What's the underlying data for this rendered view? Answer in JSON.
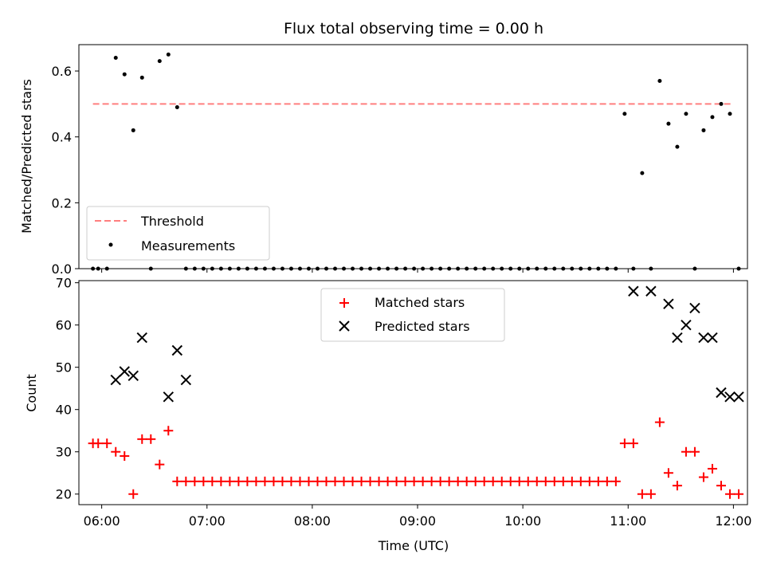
{
  "chart_data": [
    {
      "type": "scatter",
      "title": "Flux total observing time = 0.00 h",
      "ylabel": "Matched/Predicted stars",
      "ylim": [
        0.0,
        0.68
      ],
      "yticks": [
        0.0,
        0.2,
        0.4,
        0.6
      ],
      "ytick_labels": [
        "0.0",
        "0.2",
        "0.4",
        "0.6"
      ],
      "xlim": [
        "05:47",
        "12:08"
      ],
      "grid": false,
      "legend_position": "lower-left",
      "threshold": 0.5,
      "series": [
        {
          "name": "Threshold",
          "kind": "dashed-line",
          "color": "#ff7f7f",
          "x": [
            "05:55",
            "12:00"
          ],
          "y": [
            0.5,
            0.5
          ]
        },
        {
          "name": "Measurements",
          "kind": "dot",
          "color": "#000000",
          "x": [
            "05:55",
            "05:58",
            "06:03",
            "06:08",
            "06:13",
            "06:18",
            "06:23",
            "06:28",
            "06:33",
            "06:38",
            "06:43",
            "06:48",
            "06:53",
            "06:58",
            "07:03",
            "07:08",
            "07:13",
            "07:18",
            "07:23",
            "07:28",
            "07:33",
            "07:38",
            "07:43",
            "07:48",
            "07:53",
            "07:58",
            "08:03",
            "08:08",
            "08:13",
            "08:18",
            "08:23",
            "08:28",
            "08:33",
            "08:38",
            "08:43",
            "08:48",
            "08:53",
            "08:58",
            "09:03",
            "09:08",
            "09:13",
            "09:18",
            "09:23",
            "09:28",
            "09:33",
            "09:38",
            "09:43",
            "09:48",
            "09:53",
            "09:58",
            "10:03",
            "10:08",
            "10:13",
            "10:18",
            "10:23",
            "10:28",
            "10:33",
            "10:38",
            "10:43",
            "10:48",
            "10:53",
            "10:58",
            "11:03",
            "11:08",
            "11:13",
            "11:18",
            "11:23",
            "11:28",
            "11:33",
            "11:38",
            "11:43",
            "11:48",
            "11:53",
            "11:58",
            "12:03"
          ],
          "y": [
            0,
            0,
            0,
            0.64,
            0.59,
            0.42,
            0.58,
            0,
            0.63,
            0.65,
            0.49,
            0,
            0,
            0,
            0,
            0,
            0,
            0,
            0,
            0,
            0,
            0,
            0,
            0,
            0,
            0,
            0,
            0,
            0,
            0,
            0,
            0,
            0,
            0,
            0,
            0,
            0,
            0,
            0,
            0,
            0,
            0,
            0,
            0,
            0,
            0,
            0,
            0,
            0,
            0,
            0,
            0,
            0,
            0,
            0,
            0,
            0,
            0,
            0,
            0,
            0,
            0.47,
            0,
            0.29,
            0,
            0.57,
            0.44,
            0.37,
            0.47,
            0,
            0.42,
            0.46,
            0.5,
            0.47,
            0
          ]
        }
      ]
    },
    {
      "type": "scatter",
      "xlabel": "Time (UTC)",
      "ylabel": "Count",
      "ylim": [
        17.5,
        70.5
      ],
      "yticks": [
        20,
        30,
        40,
        50,
        60,
        70
      ],
      "ytick_labels": [
        "20",
        "30",
        "40",
        "50",
        "60",
        "70"
      ],
      "xlim": [
        "05:47",
        "12:08"
      ],
      "xticks": [
        "06:00",
        "07:00",
        "08:00",
        "09:00",
        "10:00",
        "11:00",
        "12:00"
      ],
      "xtick_labels": [
        "06:00",
        "07:00",
        "08:00",
        "09:00",
        "10:00",
        "11:00",
        "12:00"
      ],
      "grid": false,
      "legend_position": "upper-center",
      "series": [
        {
          "name": "Matched stars",
          "marker": "+",
          "color": "#ff0000",
          "x": [
            "05:55",
            "05:58",
            "06:03",
            "06:08",
            "06:13",
            "06:18",
            "06:23",
            "06:28",
            "06:33",
            "06:38",
            "06:43",
            "06:48",
            "06:53",
            "06:58",
            "07:03",
            "07:08",
            "07:13",
            "07:18",
            "07:23",
            "07:28",
            "07:33",
            "07:38",
            "07:43",
            "07:48",
            "07:53",
            "07:58",
            "08:03",
            "08:08",
            "08:13",
            "08:18",
            "08:23",
            "08:28",
            "08:33",
            "08:38",
            "08:43",
            "08:48",
            "08:53",
            "08:58",
            "09:03",
            "09:08",
            "09:13",
            "09:18",
            "09:23",
            "09:28",
            "09:33",
            "09:38",
            "09:43",
            "09:48",
            "09:53",
            "09:58",
            "10:03",
            "10:08",
            "10:13",
            "10:18",
            "10:23",
            "10:28",
            "10:33",
            "10:38",
            "10:43",
            "10:48",
            "10:53",
            "10:58",
            "11:03",
            "11:08",
            "11:13",
            "11:18",
            "11:23",
            "11:28",
            "11:33",
            "11:38",
            "11:43",
            "11:48",
            "11:53",
            "11:58",
            "12:03"
          ],
          "y": [
            32,
            32,
            32,
            30,
            29,
            20,
            33,
            33,
            27,
            35,
            23,
            23,
            23,
            23,
            23,
            23,
            23,
            23,
            23,
            23,
            23,
            23,
            23,
            23,
            23,
            23,
            23,
            23,
            23,
            23,
            23,
            23,
            23,
            23,
            23,
            23,
            23,
            23,
            23,
            23,
            23,
            23,
            23,
            23,
            23,
            23,
            23,
            23,
            23,
            23,
            23,
            23,
            23,
            23,
            23,
            23,
            23,
            23,
            23,
            23,
            23,
            32,
            32,
            20,
            20,
            37,
            25,
            22,
            30,
            30,
            24,
            26,
            22,
            20,
            20
          ]
        },
        {
          "name": "Predicted stars",
          "marker": "x",
          "color": "#000000",
          "x": [
            "06:08",
            "06:13",
            "06:18",
            "06:23",
            "06:38",
            "06:43",
            "06:48",
            "11:03",
            "11:13",
            "11:23",
            "11:28",
            "11:33",
            "11:38",
            "11:43",
            "11:48",
            "11:53",
            "11:58",
            "12:03"
          ],
          "y": [
            47,
            49,
            48,
            57,
            43,
            54,
            47,
            68,
            68,
            65,
            57,
            60,
            64,
            57,
            57,
            44,
            43,
            43
          ]
        }
      ]
    }
  ]
}
